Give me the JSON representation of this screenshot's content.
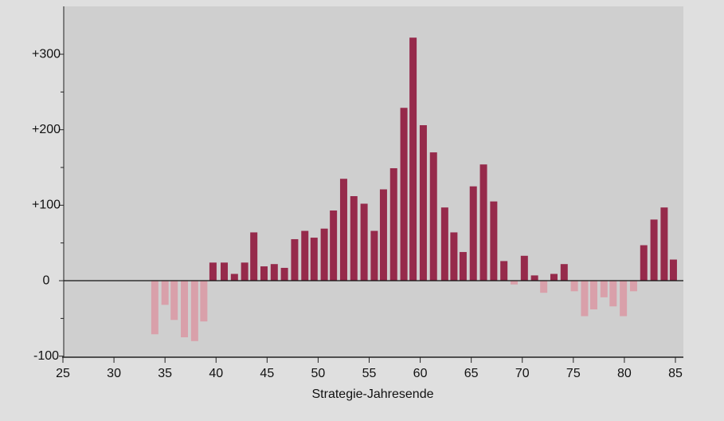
{
  "chart_data": {
    "type": "bar",
    "x_label": "Strategie-Jahresende",
    "x": [
      34.0,
      35.0,
      35.9,
      36.9,
      37.9,
      38.8,
      39.7,
      40.8,
      41.8,
      42.8,
      43.7,
      44.7,
      45.7,
      46.7,
      47.7,
      48.7,
      49.6,
      50.6,
      51.5,
      52.5,
      53.5,
      54.5,
      55.5,
      56.4,
      57.4,
      58.4,
      59.3,
      60.3,
      61.3,
      62.4,
      63.3,
      64.2,
      65.2,
      66.2,
      67.2,
      68.2,
      69.2,
      70.2,
      71.2,
      72.1,
      73.1,
      74.1,
      75.1,
      76.1,
      77.0,
      78.0,
      78.9,
      79.9,
      80.9,
      81.9,
      82.9,
      83.9,
      84.8
    ],
    "values": [
      -71,
      -32,
      -52,
      -75,
      -80,
      -54,
      24,
      24,
      9,
      24,
      64,
      19,
      22,
      17,
      55,
      66,
      57,
      69,
      93,
      135,
      112,
      102,
      66,
      121,
      149,
      229,
      322,
      206,
      170,
      97,
      64,
      38,
      125,
      154,
      105,
      26,
      -5,
      33,
      7,
      -16,
      9,
      22,
      -14,
      -47,
      -38,
      -22,
      -34,
      -47,
      -14,
      47,
      81,
      97,
      28
    ],
    "color": "#962a4b",
    "negative_color": "#d9a0aa",
    "xlim": [
      25,
      85
    ],
    "xticks": [
      25,
      30,
      35,
      40,
      45,
      50,
      55,
      60,
      65,
      70,
      75,
      80,
      85
    ],
    "ylim": [
      -100,
      320
    ],
    "yticks": [
      {
        "value": 300,
        "label": "+300"
      },
      {
        "value": 200,
        "label": "+200"
      },
      {
        "value": 100,
        "label": "+100"
      },
      0,
      -100
    ],
    "yminor": [
      250,
      150,
      50,
      -50
    ]
  }
}
